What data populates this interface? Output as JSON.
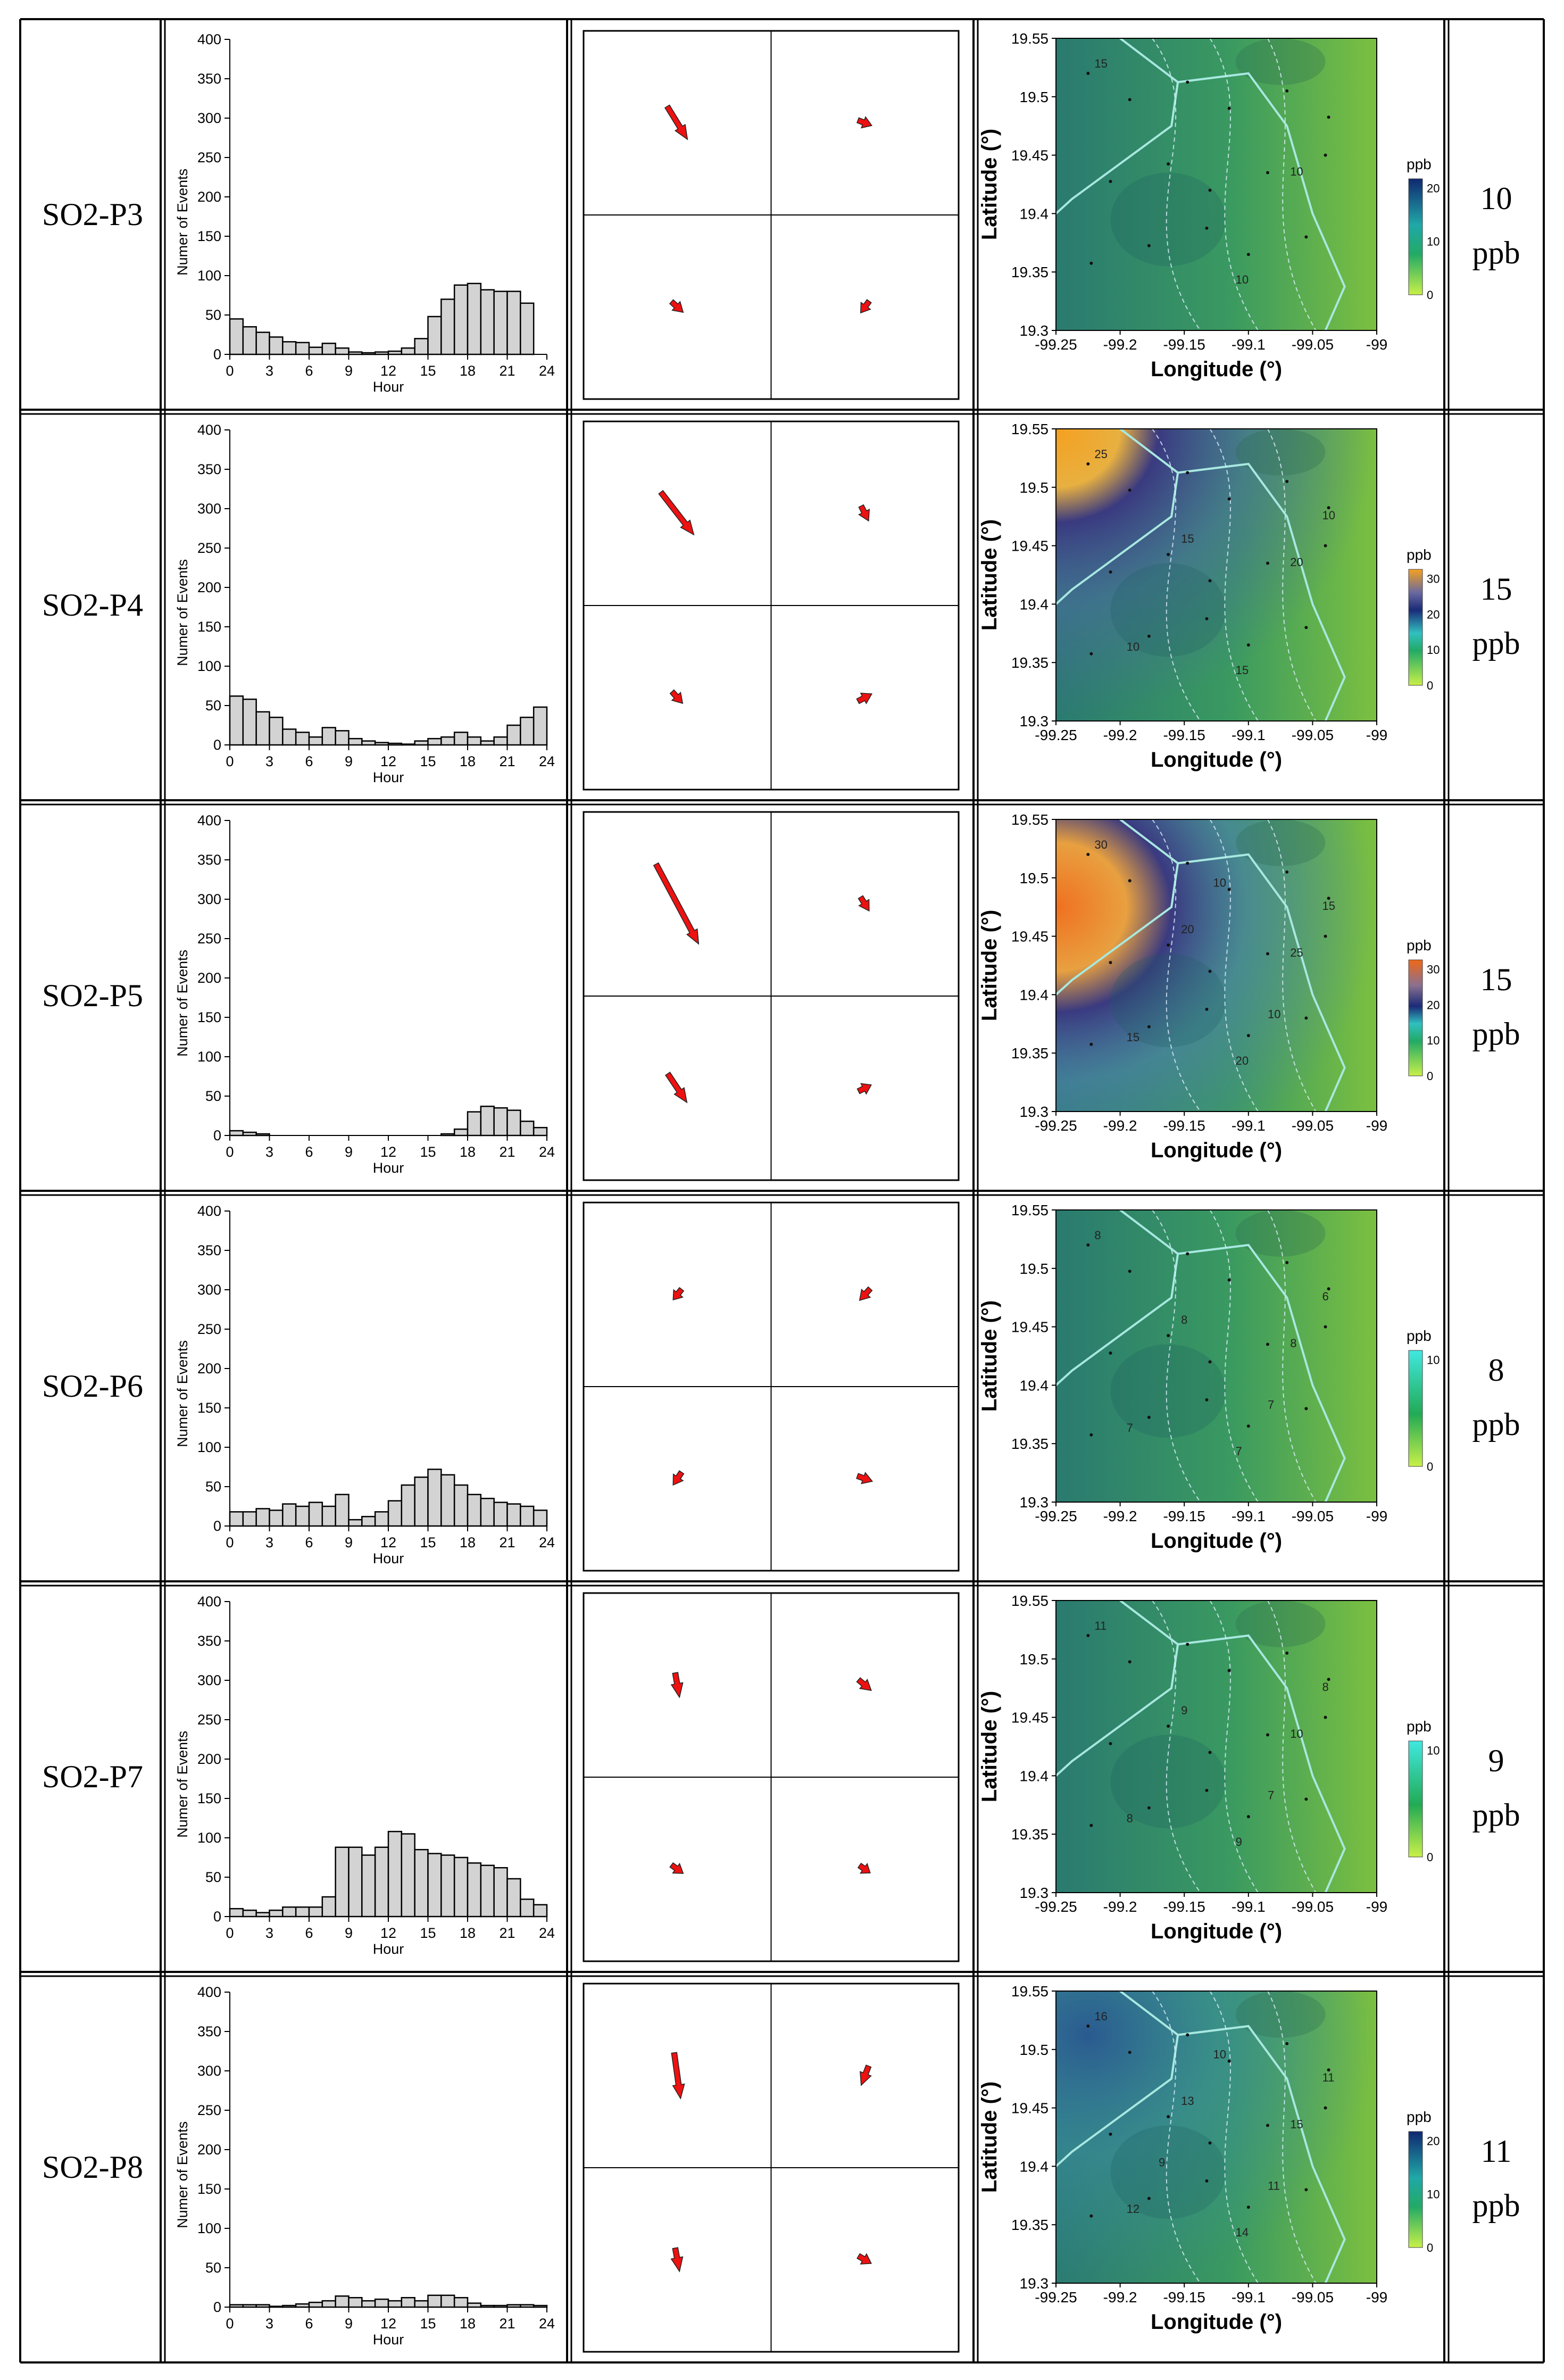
{
  "hist_axis": {
    "ylabel": "Numer of Events",
    "xlabel": "Hour",
    "yticks": [
      "0",
      "50",
      "100",
      "150",
      "200",
      "250",
      "300",
      "350",
      "400"
    ],
    "xticks": [
      "0",
      "3",
      "6",
      "9",
      "12",
      "15",
      "18",
      "21",
      "24"
    ]
  },
  "map_axis": {
    "xlabel": "Longitude (°)",
    "ylabel": "Latitude (°)",
    "xticks": [
      "-99.25",
      "-99.2",
      "-99.15",
      "-99.1",
      "-99.05",
      "-99"
    ],
    "yticks": [
      "19.3",
      "19.35",
      "19.4",
      "19.45",
      "19.5",
      "19.55"
    ],
    "unit": "ppb"
  },
  "colors": {
    "bar_fill": "#d3d3d3",
    "arrow": "#ee1111",
    "frame": "#000000"
  },
  "rows": [
    {
      "label": "SO2-P3",
      "conc_value": "10",
      "conc_unit": "ppb",
      "cb_ticks": [
        "0",
        "10",
        "20"
      ],
      "contours": [
        "15",
        "10",
        "10"
      ]
    },
    {
      "label": "SO2-P4",
      "conc_value": "15",
      "conc_unit": "ppb",
      "cb_ticks": [
        "0",
        "10",
        "20",
        "30"
      ],
      "contours": [
        "25",
        "20",
        "15",
        "15",
        "10",
        "10"
      ]
    },
    {
      "label": "SO2-P5",
      "conc_value": "15",
      "conc_unit": "ppb",
      "cb_ticks": [
        "0",
        "10",
        "20",
        "30"
      ],
      "contours": [
        "30",
        "25",
        "20",
        "20",
        "15",
        "15",
        "10",
        "10"
      ]
    },
    {
      "label": "SO2-P6",
      "conc_value": "8",
      "conc_unit": "ppb",
      "cb_ticks": [
        "0",
        "10"
      ],
      "contours": [
        "8",
        "8",
        "7",
        "8",
        "7",
        "6",
        "7"
      ]
    },
    {
      "label": "SO2-P7",
      "conc_value": "9",
      "conc_unit": "ppb",
      "cb_ticks": [
        "0",
        "10"
      ],
      "contours": [
        "11",
        "10",
        "9",
        "9",
        "8",
        "8",
        "7"
      ]
    },
    {
      "label": "SO2-P8",
      "conc_value": "11",
      "conc_unit": "ppb",
      "cb_ticks": [
        "0",
        "10",
        "20"
      ],
      "contours": [
        "16",
        "15",
        "14",
        "13",
        "12",
        "11",
        "11",
        "10",
        "9"
      ]
    }
  ],
  "chart_data": [
    {
      "type": "bar",
      "title": "SO2-P3",
      "xlabel": "Hour",
      "ylabel": "Numer of Events",
      "ylim": [
        0,
        400
      ],
      "xlim": [
        0,
        24
      ],
      "x": [
        0,
        1,
        2,
        3,
        4,
        5,
        6,
        7,
        8,
        9,
        10,
        11,
        12,
        13,
        14,
        15,
        16,
        17,
        18,
        19,
        20,
        21,
        22,
        23
      ],
      "values": [
        45,
        35,
        28,
        22,
        16,
        15,
        9,
        14,
        8,
        3,
        2,
        3,
        4,
        8,
        20,
        48,
        70,
        88,
        90,
        82,
        80,
        80,
        65,
        0
      ]
    },
    {
      "type": "bar",
      "title": "SO2-P4",
      "xlabel": "Hour",
      "ylabel": "Numer of Events",
      "ylim": [
        0,
        400
      ],
      "xlim": [
        0,
        24
      ],
      "x": [
        0,
        1,
        2,
        3,
        4,
        5,
        6,
        7,
        8,
        9,
        10,
        11,
        12,
        13,
        14,
        15,
        16,
        17,
        18,
        19,
        20,
        21,
        22,
        23
      ],
      "values": [
        62,
        58,
        42,
        35,
        20,
        16,
        10,
        22,
        18,
        8,
        5,
        3,
        2,
        1,
        5,
        8,
        10,
        16,
        10,
        5,
        10,
        25,
        35,
        48
      ]
    },
    {
      "type": "bar",
      "title": "SO2-P5",
      "xlabel": "Hour",
      "ylabel": "Numer of Events",
      "ylim": [
        0,
        400
      ],
      "xlim": [
        0,
        24
      ],
      "x": [
        0,
        1,
        2,
        3,
        4,
        5,
        6,
        7,
        8,
        9,
        10,
        11,
        12,
        13,
        14,
        15,
        16,
        17,
        18,
        19,
        20,
        21,
        22,
        23
      ],
      "values": [
        6,
        4,
        2,
        0,
        0,
        0,
        0,
        0,
        0,
        0,
        0,
        0,
        0,
        0,
        0,
        0,
        2,
        8,
        30,
        37,
        35,
        32,
        18,
        10
      ]
    },
    {
      "type": "bar",
      "title": "SO2-P6",
      "xlabel": "Hour",
      "ylabel": "Numer of Events",
      "ylim": [
        0,
        400
      ],
      "xlim": [
        0,
        24
      ],
      "x": [
        0,
        1,
        2,
        3,
        4,
        5,
        6,
        7,
        8,
        9,
        10,
        11,
        12,
        13,
        14,
        15,
        16,
        17,
        18,
        19,
        20,
        21,
        22,
        23
      ],
      "values": [
        18,
        18,
        22,
        20,
        28,
        25,
        30,
        25,
        40,
        8,
        12,
        18,
        32,
        52,
        62,
        72,
        65,
        52,
        40,
        35,
        30,
        28,
        25,
        20
      ]
    },
    {
      "type": "bar",
      "title": "SO2-P7",
      "xlabel": "Hour",
      "ylabel": "Numer of Events",
      "ylim": [
        0,
        400
      ],
      "xlim": [
        0,
        24
      ],
      "x": [
        0,
        1,
        2,
        3,
        4,
        5,
        6,
        7,
        8,
        9,
        10,
        11,
        12,
        13,
        14,
        15,
        16,
        17,
        18,
        19,
        20,
        21,
        22,
        23
      ],
      "values": [
        10,
        8,
        5,
        8,
        12,
        12,
        12,
        25,
        88,
        88,
        78,
        88,
        108,
        105,
        85,
        80,
        78,
        75,
        68,
        65,
        62,
        48,
        22,
        15
      ]
    },
    {
      "type": "bar",
      "title": "SO2-P8",
      "xlabel": "Hour",
      "ylabel": "Numer of Events",
      "ylim": [
        0,
        400
      ],
      "xlim": [
        0,
        24
      ],
      "x": [
        0,
        1,
        2,
        3,
        4,
        5,
        6,
        7,
        8,
        9,
        10,
        11,
        12,
        13,
        14,
        15,
        16,
        17,
        18,
        19,
        20,
        21,
        22,
        23
      ],
      "values": [
        3,
        3,
        3,
        1,
        2,
        4,
        6,
        8,
        14,
        12,
        8,
        10,
        8,
        12,
        8,
        15,
        15,
        12,
        5,
        2,
        2,
        3,
        3,
        2
      ]
    }
  ]
}
